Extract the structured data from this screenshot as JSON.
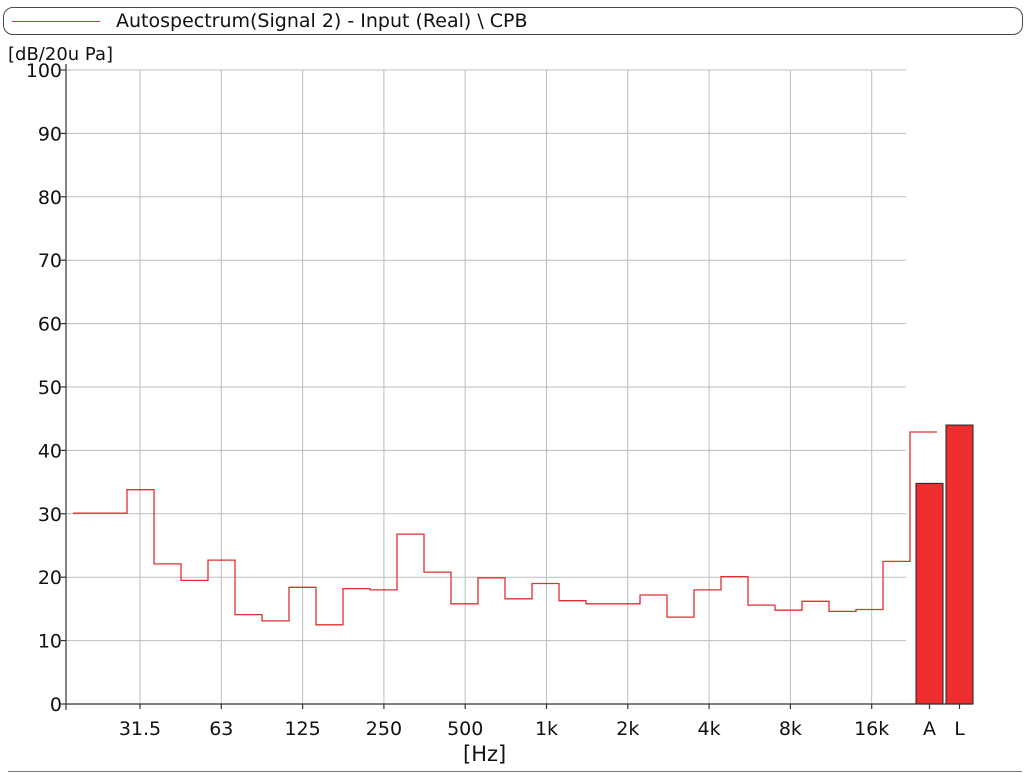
{
  "chart_data": {
    "type": "line",
    "title": "Autospectrum(Signal 2) - Input (Real) \\ CPB",
    "ylabel": "[dB/20u Pa]",
    "xlabel": "[Hz]",
    "ylim": [
      0,
      100
    ],
    "y_ticks": [
      "0",
      "10",
      "20",
      "30",
      "40",
      "50",
      "60",
      "70",
      "80",
      "90",
      "100"
    ],
    "x_ticks": [
      "31.5",
      "63",
      "125",
      "250",
      "500",
      "1k",
      "2k",
      "4k",
      "8k",
      "16k"
    ],
    "grid": true,
    "series": [
      {
        "name": "Autospectrum(Signal 2) - Input (Real) \\ CPB",
        "color": "#e03030",
        "style": "step",
        "x": [
          "16",
          "20",
          "25",
          "31.5",
          "40",
          "50",
          "63",
          "80",
          "100",
          "125",
          "160",
          "200",
          "250",
          "315",
          "400",
          "500",
          "630",
          "800",
          "1k",
          "1.25k",
          "1.6k",
          "2k",
          "2.5k",
          "3.15k",
          "4k",
          "5k",
          "6.3k",
          "8k",
          "10k",
          "12.5k",
          "16k",
          "20k"
        ],
        "values": [
          30.1,
          30.1,
          33.8,
          22.1,
          19.5,
          22.7,
          14.1,
          13.1,
          18.4,
          12.5,
          18.2,
          18.0,
          26.8,
          20.8,
          15.8,
          19.9,
          16.6,
          19.0,
          16.3,
          15.8,
          15.8,
          17.2,
          13.7,
          18.0,
          20.1,
          15.6,
          14.8,
          16.2,
          14.6,
          14.9,
          22.5,
          42.9
        ]
      }
    ],
    "overall_bars": [
      {
        "label": "A",
        "value": 34.8,
        "color": "#ee2e2e"
      },
      {
        "label": "L",
        "value": 44.0,
        "color": "#ee2e2e"
      }
    ]
  }
}
